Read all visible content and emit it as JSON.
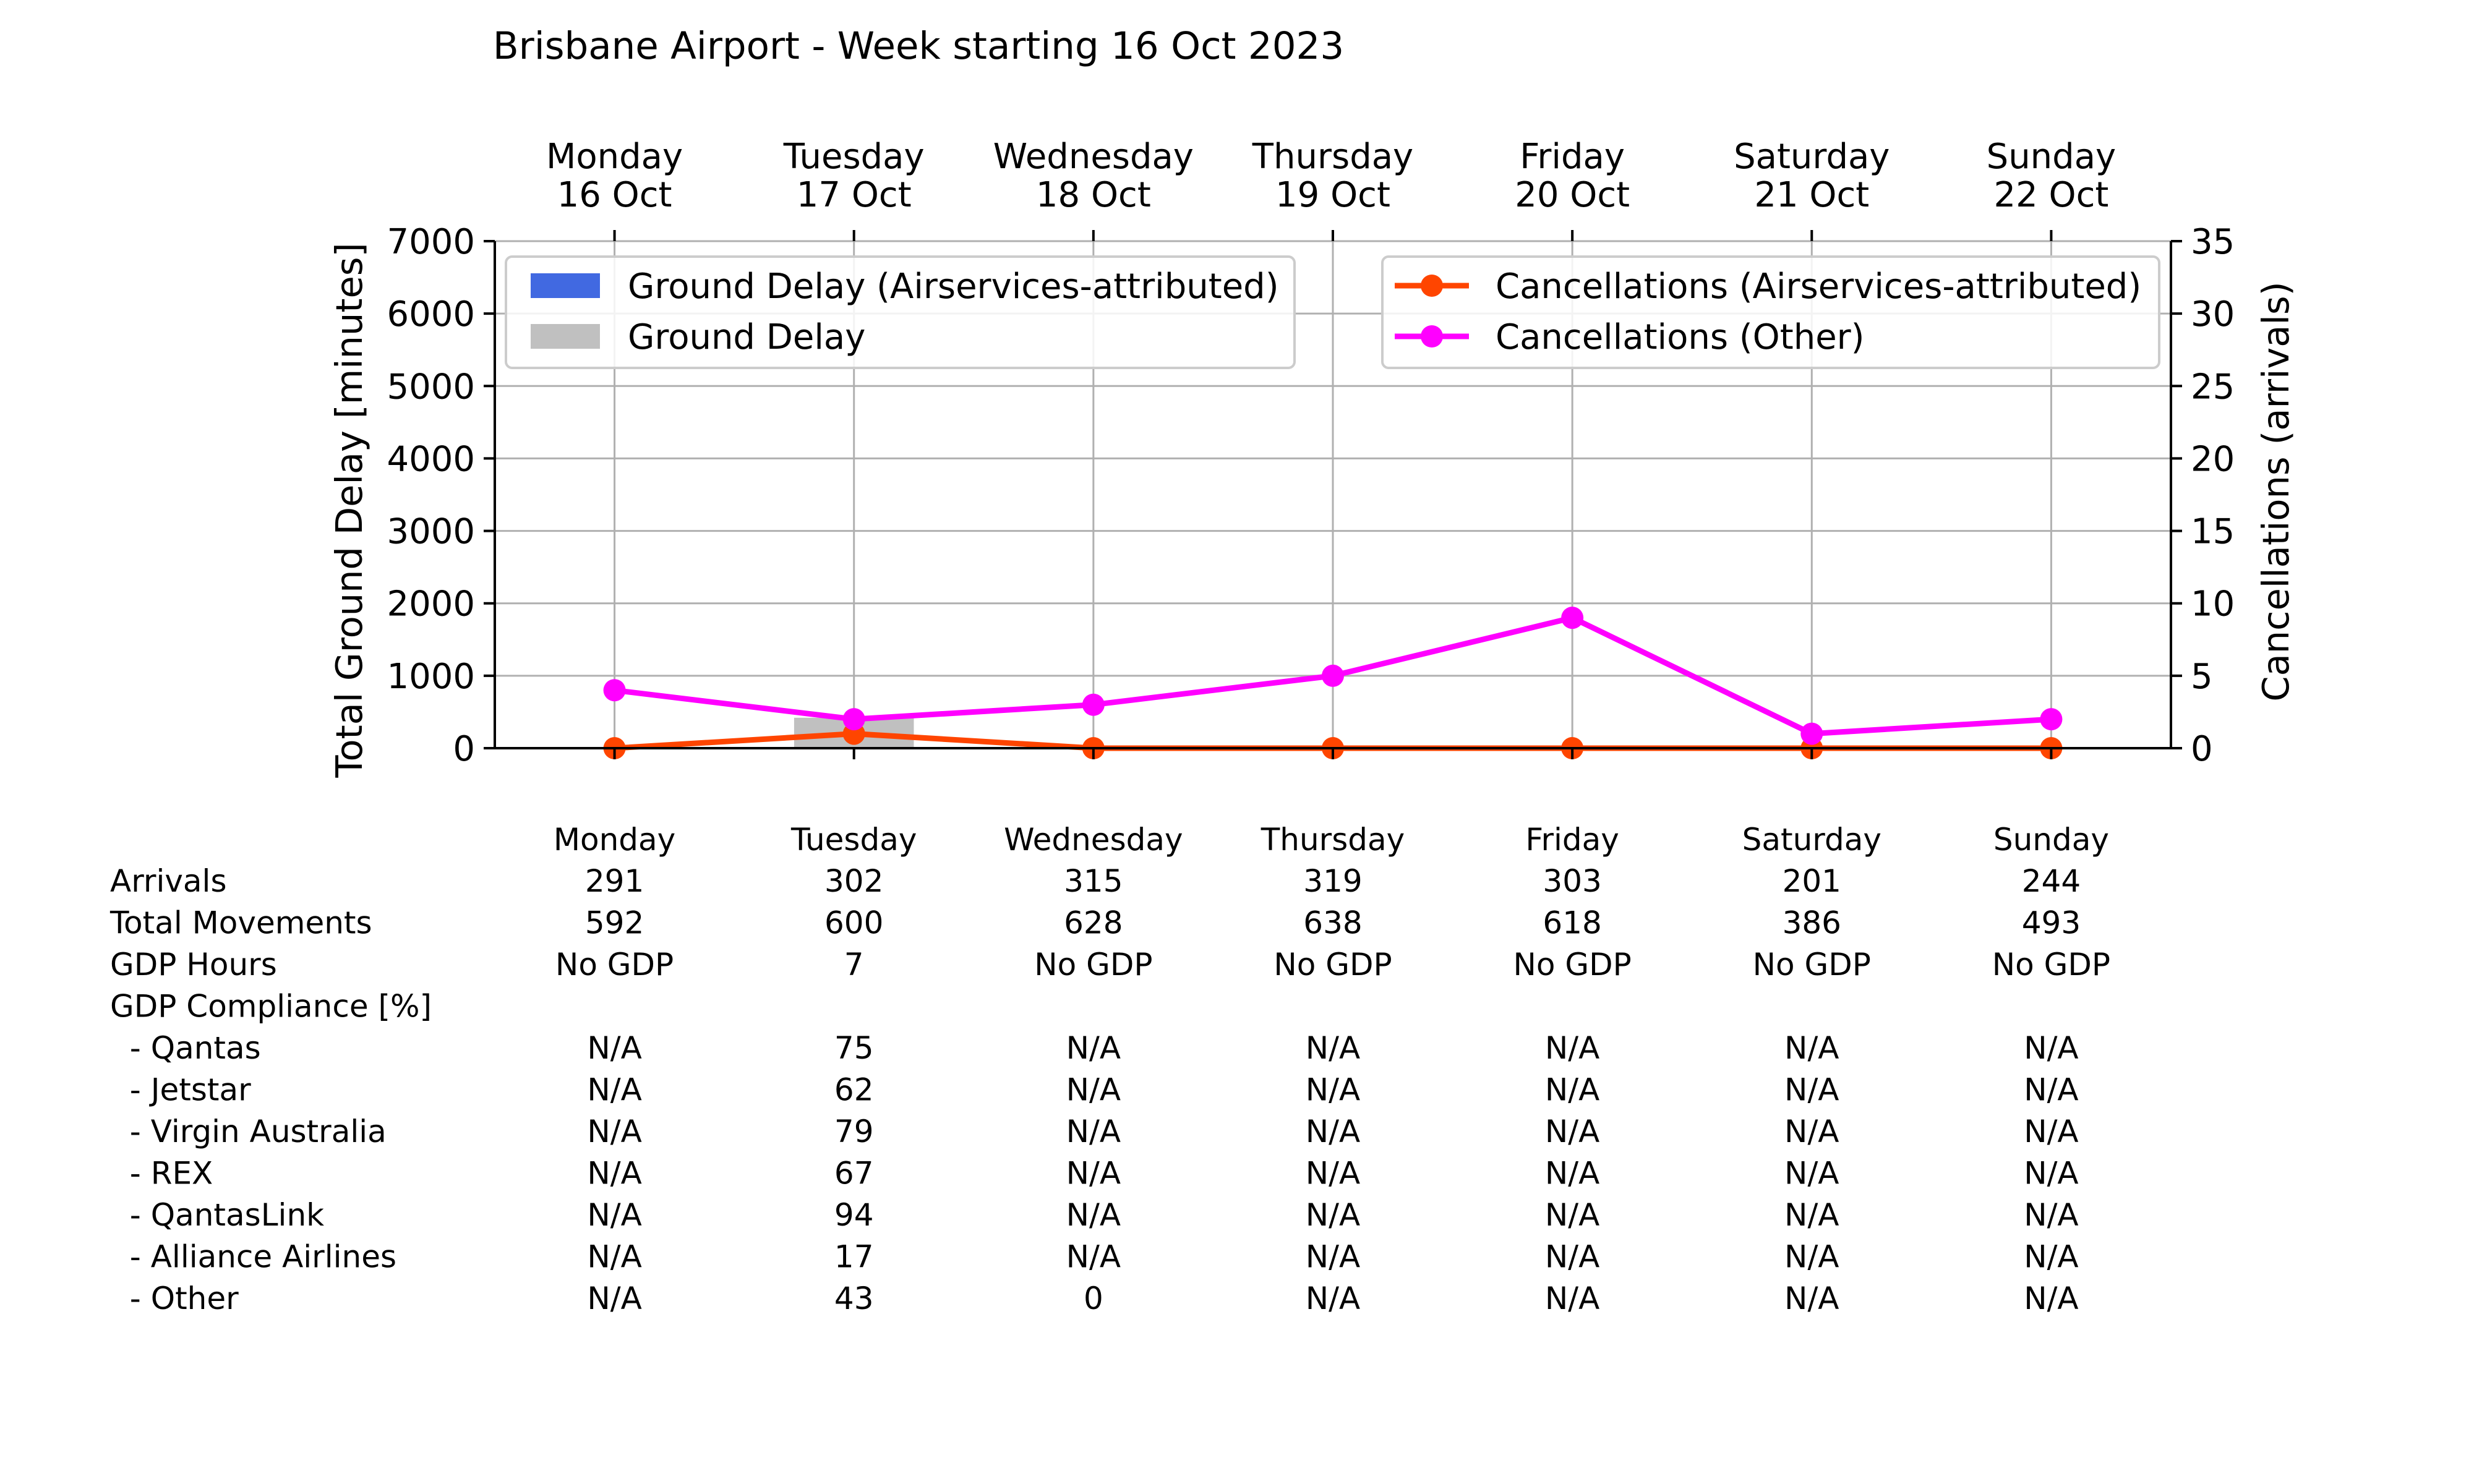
{
  "chart_data": {
    "type": "bar+line",
    "title": "Brisbane Airport - Week starting 16 Oct 2023",
    "top_labels": [
      {
        "day": "Monday",
        "date": "16 Oct"
      },
      {
        "day": "Tuesday",
        "date": "17 Oct"
      },
      {
        "day": "Wednesday",
        "date": "18 Oct"
      },
      {
        "day": "Thursday",
        "date": "19 Oct"
      },
      {
        "day": "Friday",
        "date": "20 Oct"
      },
      {
        "day": "Saturday",
        "date": "21 Oct"
      },
      {
        "day": "Sunday",
        "date": "22 Oct"
      }
    ],
    "ylabel_left": "Total Ground Delay [minutes]",
    "ylabel_right": "Cancellations (arrivals)",
    "ylim_left": [
      0,
      7000
    ],
    "ylim_right": [
      0,
      35
    ],
    "yticks_left": [
      "0",
      "1000",
      "2000",
      "3000",
      "4000",
      "5000",
      "6000",
      "7000"
    ],
    "yticks_right": [
      "0",
      "5",
      "10",
      "15",
      "20",
      "25",
      "30",
      "35"
    ],
    "grid": true,
    "bar_series": [
      {
        "name": "Ground Delay (Airservices-attributed)",
        "color": "#4169e1",
        "values": [
          0,
          0,
          0,
          0,
          0,
          0,
          0
        ]
      },
      {
        "name": "Ground Delay",
        "color": "#c0c0c0",
        "values": [
          0,
          420,
          0,
          0,
          0,
          0,
          0
        ]
      }
    ],
    "line_series": [
      {
        "name": "Cancellations (Airservices-attributed)",
        "color": "#ff4500",
        "values": [
          0,
          1,
          0,
          0,
          0,
          0,
          0
        ]
      },
      {
        "name": "Cancellations (Other)",
        "color": "#ff00ff",
        "values": [
          4,
          2,
          3,
          5,
          9,
          1,
          2
        ]
      }
    ],
    "legend_left_position": "upper-left",
    "legend_right_position": "upper-right"
  },
  "table": {
    "days": [
      "Monday",
      "Tuesday",
      "Wednesday",
      "Thursday",
      "Friday",
      "Saturday",
      "Sunday"
    ],
    "rows": [
      {
        "label": "Arrivals",
        "values": [
          "291",
          "302",
          "315",
          "319",
          "303",
          "201",
          "244"
        ]
      },
      {
        "label": "Total Movements",
        "values": [
          "592",
          "600",
          "628",
          "638",
          "618",
          "386",
          "493"
        ]
      },
      {
        "label": "GDP Hours",
        "values": [
          "No GDP",
          "7",
          "No GDP",
          "No GDP",
          "No GDP",
          "No GDP",
          "No GDP"
        ]
      },
      {
        "label": "GDP Compliance [%]",
        "values": [
          "",
          "",
          "",
          "",
          "",
          "",
          ""
        ]
      },
      {
        "label": "  - Qantas",
        "values": [
          "N/A",
          "75",
          "N/A",
          "N/A",
          "N/A",
          "N/A",
          "N/A"
        ]
      },
      {
        "label": "  - Jetstar",
        "values": [
          "N/A",
          "62",
          "N/A",
          "N/A",
          "N/A",
          "N/A",
          "N/A"
        ]
      },
      {
        "label": "  - Virgin Australia",
        "values": [
          "N/A",
          "79",
          "N/A",
          "N/A",
          "N/A",
          "N/A",
          "N/A"
        ]
      },
      {
        "label": "  - REX",
        "values": [
          "N/A",
          "67",
          "N/A",
          "N/A",
          "N/A",
          "N/A",
          "N/A"
        ]
      },
      {
        "label": "  - QantasLink",
        "values": [
          "N/A",
          "94",
          "N/A",
          "N/A",
          "N/A",
          "N/A",
          "N/A"
        ]
      },
      {
        "label": "  - Alliance Airlines",
        "values": [
          "N/A",
          "17",
          "N/A",
          "N/A",
          "N/A",
          "N/A",
          "N/A"
        ]
      },
      {
        "label": "  - Other",
        "values": [
          "N/A",
          "43",
          "0",
          "N/A",
          "N/A",
          "N/A",
          "N/A"
        ]
      }
    ]
  }
}
